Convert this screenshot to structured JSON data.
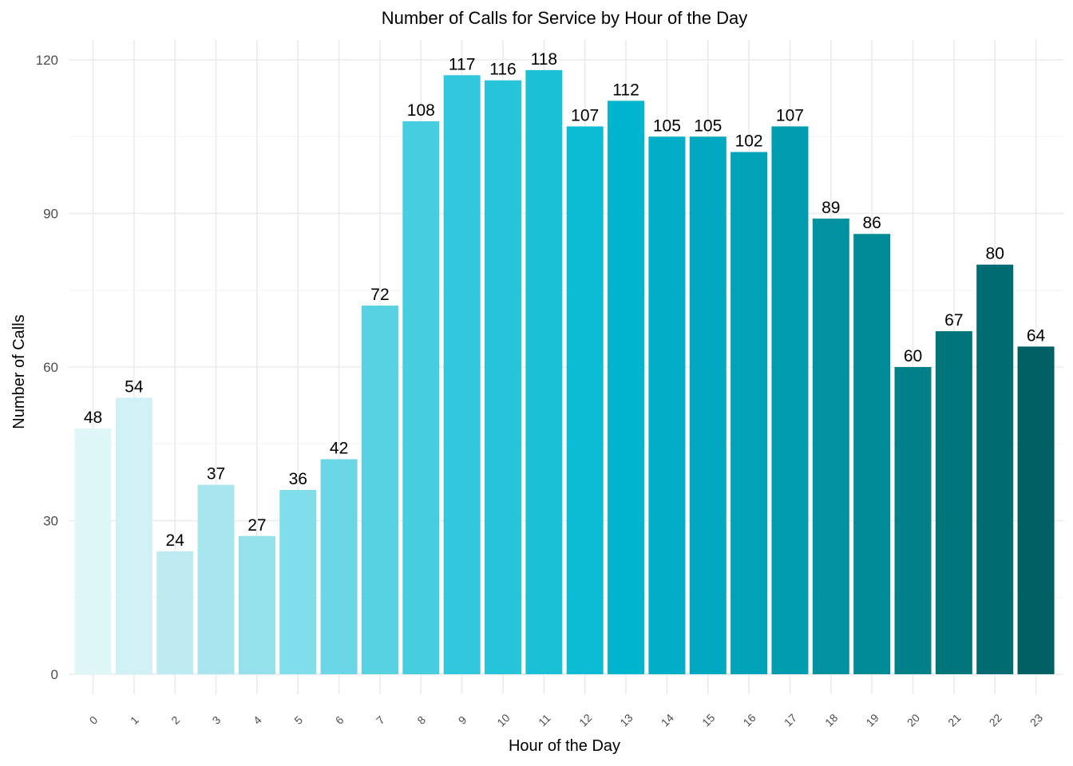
{
  "chart_data": {
    "type": "bar",
    "title": "Number of Calls for Service by Hour of the Day",
    "xlabel": "Hour of the Day",
    "ylabel": "Number of Calls",
    "categories": [
      "0",
      "1",
      "2",
      "3",
      "4",
      "5",
      "6",
      "7",
      "8",
      "9",
      "10",
      "11",
      "12",
      "13",
      "14",
      "15",
      "16",
      "17",
      "18",
      "19",
      "20",
      "21",
      "22",
      "23"
    ],
    "values": [
      48,
      54,
      24,
      37,
      27,
      36,
      42,
      72,
      108,
      117,
      116,
      118,
      107,
      112,
      105,
      105,
      102,
      107,
      89,
      86,
      60,
      67,
      80,
      64
    ],
    "ylim": [
      0,
      120
    ],
    "yticks": [
      0,
      30,
      60,
      90,
      120
    ],
    "grid": true,
    "legend": "none",
    "colors": [
      "#E0F7FA",
      "#D0F1F6",
      "#BEEBF2",
      "#A8E6EF",
      "#94E1EC",
      "#80DEEA",
      "#6BD7E6",
      "#57D2E3",
      "#47CDE0",
      "#33C7DE",
      "#26C5DA",
      "#1AC0D6",
      "#0BBCD4",
      "#00B6CF",
      "#00AEC7",
      "#00A9C0",
      "#00A3B8",
      "#009CB0",
      "#0092A0",
      "#008B98",
      "#008189",
      "#00757A",
      "#006B70",
      "#005F63"
    ]
  }
}
